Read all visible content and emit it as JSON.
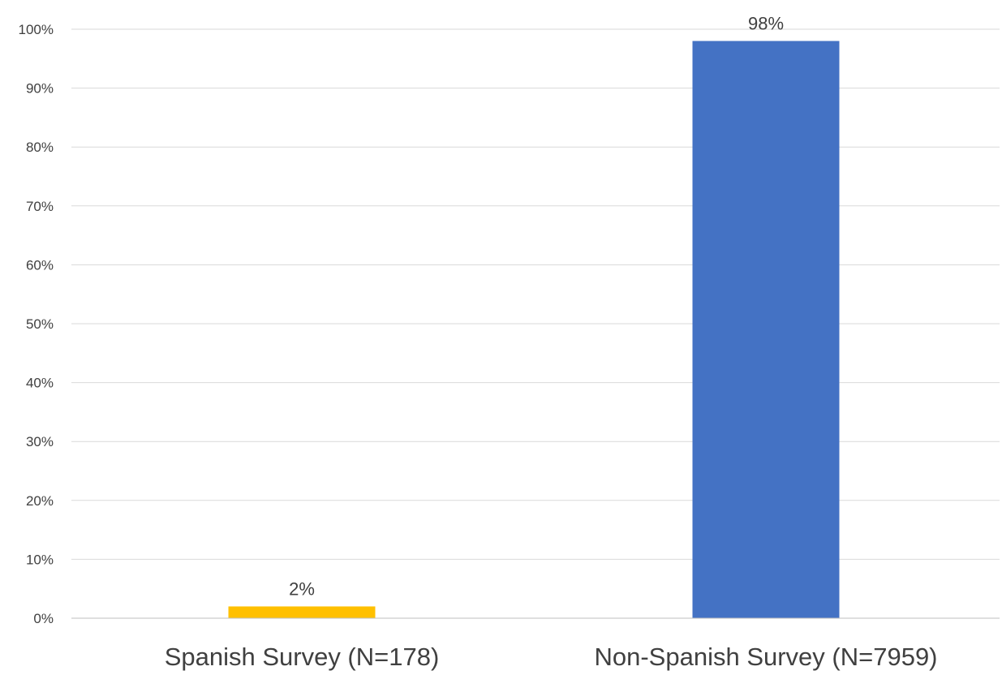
{
  "chart_data": {
    "type": "bar",
    "categories": [
      "Spanish Survey (N=178)",
      "Non-Spanish Survey (N=7959)"
    ],
    "values": [
      2,
      98
    ],
    "value_labels": [
      "2%",
      "98%"
    ],
    "colors": [
      "#FFC000",
      "#4472C4"
    ],
    "yticks": [
      "0%",
      "10%",
      "20%",
      "30%",
      "40%",
      "50%",
      "60%",
      "70%",
      "80%",
      "90%",
      "100%"
    ],
    "ylim": [
      0,
      100
    ],
    "grid": true,
    "legend": "none"
  }
}
